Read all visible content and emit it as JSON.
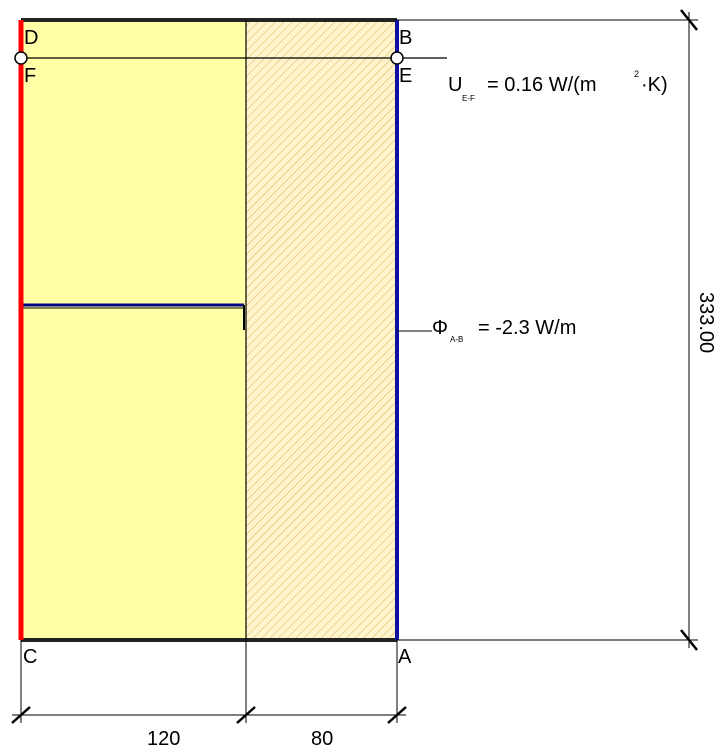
{
  "points": {
    "D": "D",
    "F": "F",
    "B": "B",
    "E": "E",
    "C": "C",
    "A": "A"
  },
  "annotations": {
    "u_symbol": "U",
    "u_subscript": "E-F",
    "u_value_pre": "= 0.16 W/(m",
    "u_superscript": "2",
    "u_value_post": "·K)",
    "phi_symbol": "Φ",
    "phi_subscript": "A-B",
    "phi_value": "= -2.3 W/m"
  },
  "dimensions": {
    "height": "333.00",
    "width_left": "120",
    "width_right": "80"
  },
  "colors": {
    "insulation_fill": "#ffffa8",
    "hatch_fill": "#fff4cc",
    "hatch_line": "#d8b25a",
    "boundary_left": "#ff0000",
    "boundary_right": "#1010a0",
    "inner_line": "#000080",
    "outline": "#000000"
  }
}
